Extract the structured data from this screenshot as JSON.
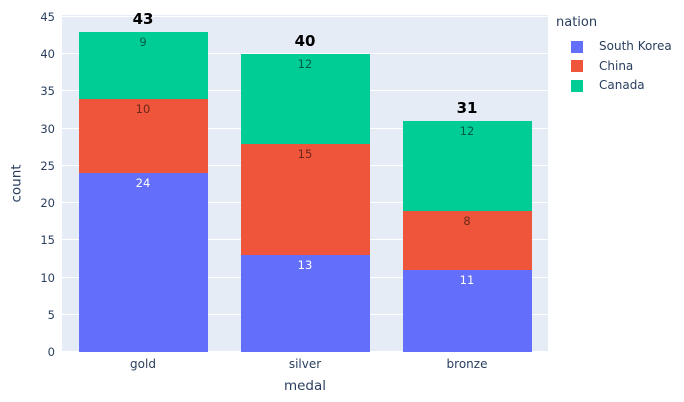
{
  "chart_data": {
    "type": "bar",
    "mode": "stacked",
    "title": "",
    "xlabel": "medal",
    "ylabel": "count",
    "categories": [
      "gold",
      "silver",
      "bronze"
    ],
    "series": [
      {
        "name": "South Korea",
        "color": "#636EFA",
        "values": [
          24,
          13,
          11
        ],
        "label_color": "#FFFFFF"
      },
      {
        "name": "China",
        "color": "#EF553B",
        "values": [
          10,
          15,
          8
        ],
        "label_color": "rgba(0,0,0,0.55)"
      },
      {
        "name": "Canada",
        "color": "#00CC96",
        "values": [
          9,
          12,
          12
        ],
        "label_color": "rgba(0,0,0,0.55)"
      }
    ],
    "totals": [
      43,
      40,
      31
    ],
    "ylim": [
      0,
      45
    ],
    "yticks": [
      0,
      5,
      10,
      15,
      20,
      25,
      30,
      35,
      40,
      45
    ],
    "grid": true,
    "legend_title": "nation",
    "legend_position": "right",
    "plot_bg": "#E5ECF6",
    "grid_color": "#FFFFFF",
    "text_color": "#2a3f5f"
  }
}
